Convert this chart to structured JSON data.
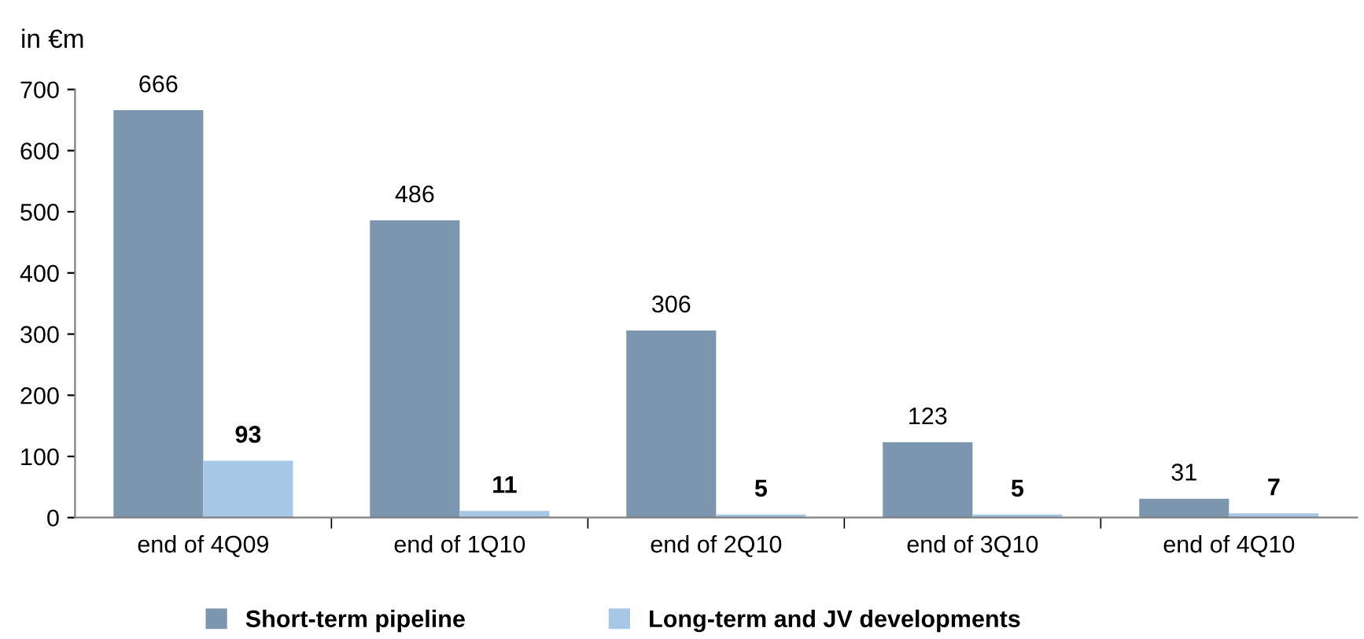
{
  "chart_data": {
    "type": "bar",
    "ylabel": "in €m",
    "categories": [
      "end of 4Q09",
      "end of 1Q10",
      "end of 2Q10",
      "end of 3Q10",
      "end of 4Q10"
    ],
    "series": [
      {
        "name": "Short-term pipeline",
        "color": "#7b96ae",
        "values": [
          666,
          486,
          306,
          123,
          31
        ]
      },
      {
        "name": "Long-term and JV developments",
        "color": "#a7c7e7",
        "values": [
          93,
          11,
          5,
          5,
          7
        ]
      }
    ],
    "ylim": [
      0,
      700
    ],
    "yticks": [
      0,
      100,
      200,
      300,
      400,
      500,
      600,
      700
    ],
    "data_labels": true,
    "legend": "bottom",
    "grid": false
  }
}
